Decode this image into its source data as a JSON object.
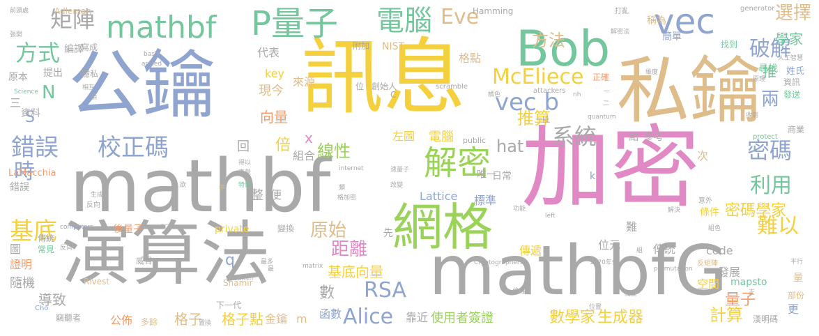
{
  "palette": {
    "c0": "#a9a9a9",
    "c1": "#f4d03f",
    "c2": "#dfbd8a",
    "c3": "#8fa4cf",
    "c4": "#74c69d",
    "c5": "#e089c4",
    "c6": "#9bd35a",
    "c7": "#f39c6b"
  },
  "words": [
    "加密",
    "mathbf",
    "演算法",
    "公鑰",
    "訊息",
    "私鑰",
    "mathbfG",
    "Bob",
    "網格",
    "mathbf",
    "P量子",
    "vec",
    "電腦",
    "解密",
    "錯誤",
    "校正碼",
    "vec b",
    "McEliece",
    "系統",
    "密碼",
    "基底",
    "破解",
    "方式",
    "利用",
    "難以",
    "距離",
    "RSA",
    "Alice",
    "方法",
    "Eve",
    "矩陣",
    "數",
    "時",
    "原始",
    "線性",
    "推算",
    "選擇",
    "學家",
    "量子",
    "計算",
    "密碼學家",
    "生成器",
    "數學家",
    "使用者簽證",
    "基底向量",
    "格子點",
    "公佈",
    "格子",
    "q",
    "N",
    "S",
    "x",
    "hat",
    "倍",
    "回",
    "推",
    "兩",
    "向量",
    "現今",
    "來源",
    "key",
    "隨機",
    "代表",
    "提出",
    "原本",
    "資料",
    "編譯",
    "寫成",
    "隱私",
    "三",
    "Adleman",
    "Shamir",
    "Rivest",
    "LaMacchia",
    "錯誤",
    "傳統",
    "Lattice",
    "標準",
    "唯一",
    "日常",
    "左圖",
    "電腦",
    "組合",
    "整",
    "便",
    "先",
    "後量子",
    "private",
    "證明",
    "圖",
    "導致",
    "威脅",
    "竊聽者",
    "多餘",
    "下一代",
    "金鑰",
    "m",
    "函數",
    "靠近",
    "位元",
    "傳遞",
    "code",
    "空間",
    "發展",
    "mapsto",
    "量",
    "更",
    "部份",
    "漢明碼",
    "Hamming",
    "NIST",
    "格點",
    "附加",
    "位",
    "創始人",
    "C",
    "scramble",
    "generator",
    "attackers",
    "public",
    "找到",
    "簡單",
    "稱為",
    "打亂",
    "尋找",
    "正確",
    "姓氏",
    "資訊",
    "發送",
    "商業",
    "protect",
    "internet",
    "computers",
    "Science",
    "armed",
    "basis",
    "quantum",
    "permutation",
    "matrix",
    "problem",
    "Cho",
    "SGP",
    "Cryptographers",
    "1970年代",
    "left",
    "k",
    "反矩陣",
    "平行",
    "前頭處",
    "張開",
    "條件",
    "意外",
    "難",
    "一段",
    "次",
    "參考",
    "點",
    "常見",
    "傳統",
    "反向",
    "生成",
    "中",
    "欲",
    "特性",
    "類",
    "格加密",
    "改變",
    "變換",
    "最多",
    "反向",
    "置換",
    "倫理",
    "功能",
    "解決",
    "組色",
    "獨立",
    "位置",
    "正",
    "組",
    "nh",
    "得以",
    "直覺",
    "相互",
    "項",
    "人工智慧",
    "原理",
    "收到",
    "維度",
    "解密法",
    "橘色",
    "二",
    "一",
    "速量子",
    "最"
  ]
}
